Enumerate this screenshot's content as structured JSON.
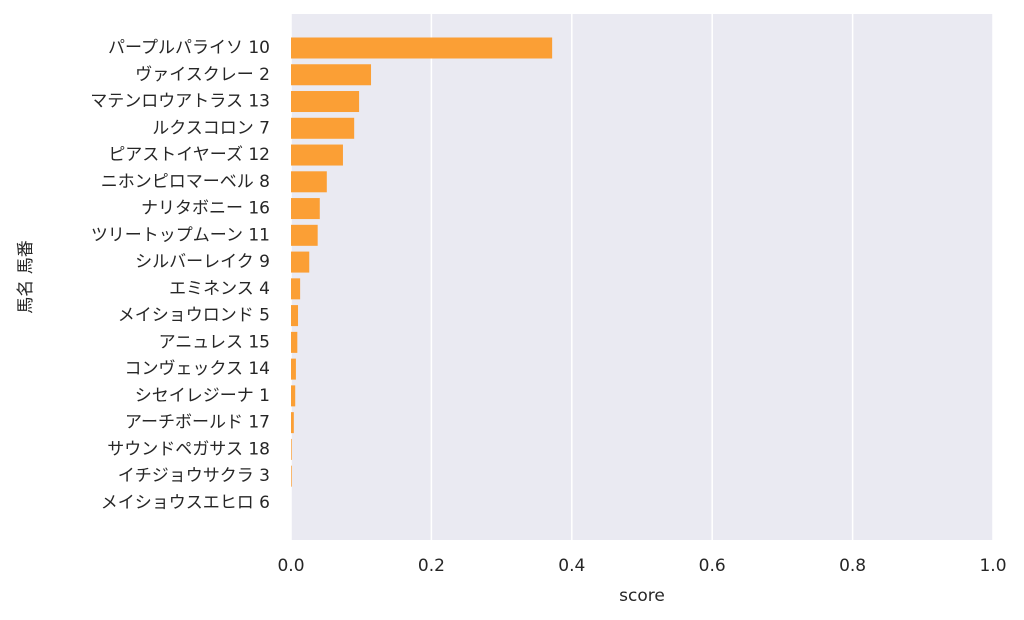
{
  "chart_data": {
    "type": "barh",
    "xlabel": "score",
    "ylabel": "馬名 馬番",
    "categories": [
      "パープルパライソ 10",
      "ヴァイスクレー 2",
      "マテンロウアトラス 13",
      "ルクスコロン 7",
      "ピアストイヤーズ 12",
      "ニホンピロマーベル 8",
      "ナリタボニー 16",
      "ツリートップムーン 11",
      "シルバーレイク 9",
      "エミネンス 4",
      "メイショウロンド 5",
      "アニュレス 15",
      "コンヴェックス 14",
      "シセイレジーナ 1",
      "アーチボールド 17",
      "サウンドペガサス 18",
      "イチジョウサクラ 3",
      "メイショウスエヒロ 6"
    ],
    "values": [
      0.372,
      0.114,
      0.097,
      0.09,
      0.074,
      0.051,
      0.041,
      0.038,
      0.026,
      0.013,
      0.01,
      0.009,
      0.007,
      0.006,
      0.004,
      0.001,
      0.001,
      0.0
    ],
    "color": "#fb9f35",
    "xlim": [
      0,
      1
    ],
    "xticks": [
      {
        "value": 0,
        "label": "0.0"
      },
      0.2,
      0.4,
      0.6,
      0.8,
      {
        "value": 1,
        "label": "1.0"
      }
    ],
    "grid": true
  }
}
